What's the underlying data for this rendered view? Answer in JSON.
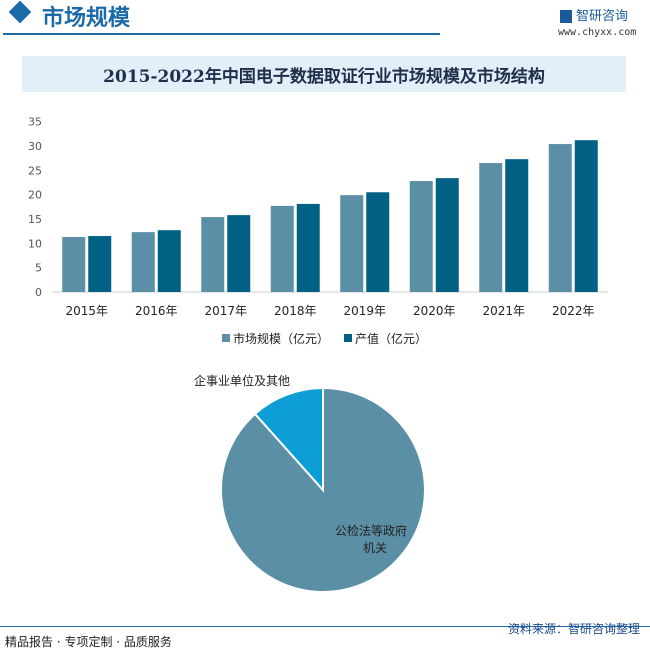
{
  "header": {
    "title": "市场规模",
    "logo_text": "智研咨询",
    "url": "www.chyxx.com"
  },
  "chart_title": "2015-2022年中国电子数据取证行业市场规模及市场结构",
  "chart_data": [
    {
      "type": "bar",
      "categories": [
        "2015年",
        "2016年",
        "2017年",
        "2018年",
        "2019年",
        "2020年",
        "2021年",
        "2022年"
      ],
      "series": [
        {
          "name": "市场规模（亿元）",
          "color": "#5b8fa6",
          "values": [
            11.3,
            12.3,
            15.4,
            17.7,
            19.9,
            22.8,
            26.5,
            30.4
          ]
        },
        {
          "name": "产值（亿元）",
          "color": "#006184",
          "values": [
            11.5,
            12.7,
            15.8,
            18.1,
            20.5,
            23.4,
            27.3,
            31.2
          ]
        }
      ],
      "ylim": [
        0,
        35
      ],
      "yticks": [
        0,
        5,
        10,
        15,
        20,
        25,
        30,
        35
      ],
      "grid": false,
      "legend": "bottom"
    },
    {
      "type": "pie",
      "slices": [
        {
          "label": "公检法等政府机关",
          "value": 88.4,
          "color": "#5b8fa6"
        },
        {
          "label": "企事业单位及其他",
          "value": 11.6,
          "color": "#0d9ed6"
        }
      ]
    }
  ],
  "footer": {
    "left": "精品报告 · 专项定制 · 品质服务",
    "right": "资料来源：智研咨询整理"
  }
}
